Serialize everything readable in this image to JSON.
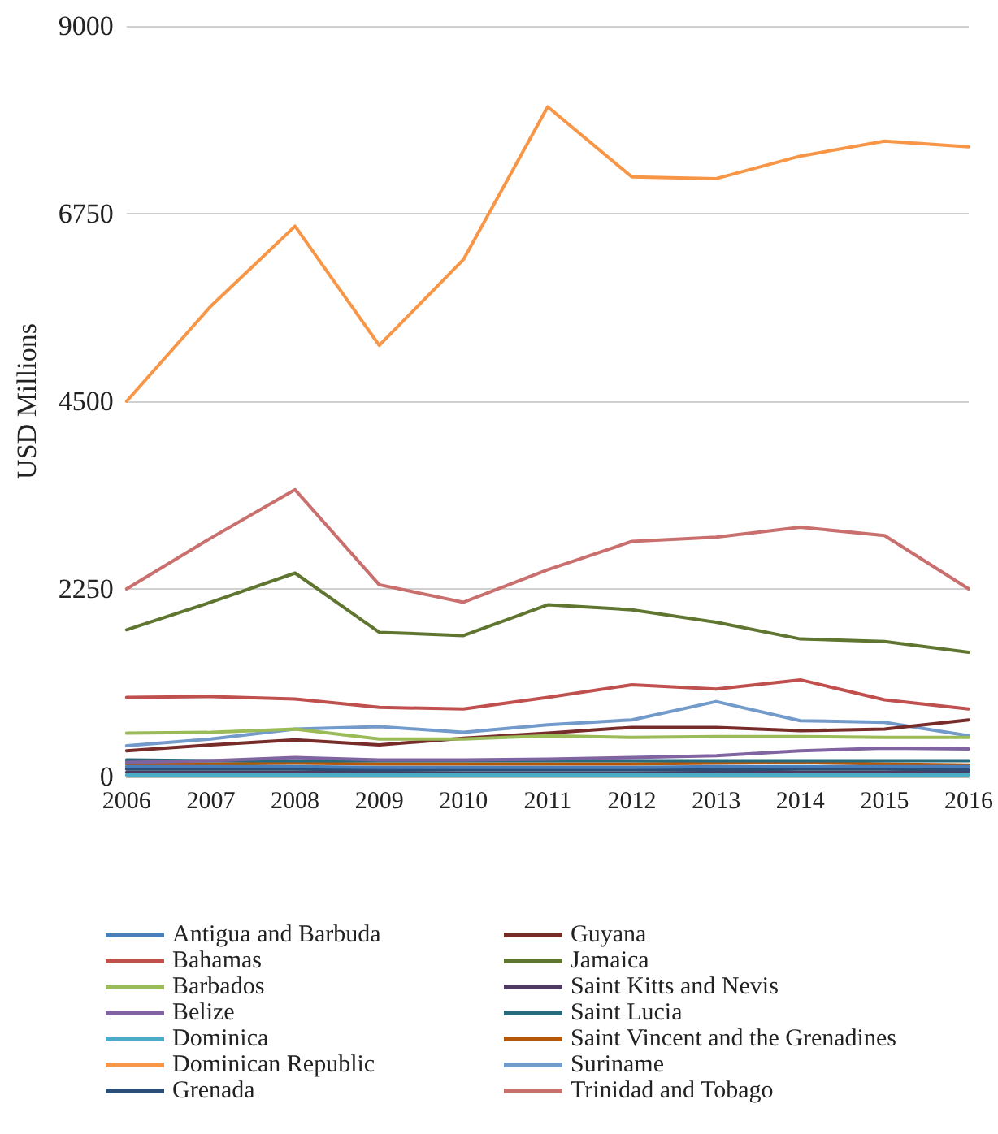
{
  "chart_data": {
    "type": "line",
    "ylabel": "USD Millions",
    "categories": [
      "2006",
      "2007",
      "2008",
      "2009",
      "2010",
      "2011",
      "2012",
      "2013",
      "2014",
      "2015",
      "2016"
    ],
    "ylim": [
      0,
      9000
    ],
    "yticks": [
      0,
      2250,
      4500,
      6750,
      9000
    ],
    "grid": "y",
    "legend": "bottom",
    "marker": "none",
    "series": [
      {
        "name": "Antigua and Barbuda",
        "color": "#4a7ebb",
        "values": [
          120,
          120,
          120,
          110,
          110,
          110,
          110,
          120,
          120,
          120,
          120
        ]
      },
      {
        "name": "Bahamas",
        "color": "#c0504d",
        "values": [
          950,
          960,
          930,
          830,
          810,
          950,
          1100,
          1050,
          1160,
          920,
          810
        ]
      },
      {
        "name": "Barbados",
        "color": "#9bbb59",
        "values": [
          520,
          530,
          570,
          450,
          450,
          490,
          470,
          480,
          480,
          470,
          470
        ]
      },
      {
        "name": "Belize",
        "color": "#8064a2",
        "values": [
          170,
          190,
          230,
          200,
          200,
          210,
          230,
          250,
          310,
          340,
          330
        ]
      },
      {
        "name": "Dominica",
        "color": "#4bacc6",
        "values": [
          20,
          20,
          20,
          20,
          20,
          20,
          20,
          20,
          20,
          20,
          20
        ]
      },
      {
        "name": "Dominican Republic",
        "color": "#f79646",
        "values": [
          4500,
          5640,
          6600,
          5170,
          6200,
          8030,
          7190,
          7170,
          7440,
          7620,
          7550
        ]
      },
      {
        "name": "Grenada",
        "color": "#2c4d75",
        "values": [
          90,
          90,
          90,
          80,
          80,
          80,
          80,
          80,
          90,
          90,
          80
        ]
      },
      {
        "name": "Guyana",
        "color": "#772c2a",
        "values": [
          310,
          380,
          440,
          380,
          460,
          520,
          590,
          590,
          550,
          570,
          680
        ]
      },
      {
        "name": "Jamaica",
        "color": "#5f7530",
        "values": [
          1760,
          2090,
          2440,
          1730,
          1690,
          2060,
          2000,
          1850,
          1650,
          1620,
          1490
        ]
      },
      {
        "name": "Saint Kitts and Nevis",
        "color": "#4d3b62",
        "values": [
          50,
          50,
          50,
          50,
          40,
          40,
          40,
          50,
          50,
          50,
          50
        ]
      },
      {
        "name": "Saint Lucia",
        "color": "#276a7c",
        "values": [
          200,
          190,
          190,
          190,
          190,
          190,
          190,
          190,
          190,
          190,
          190
        ]
      },
      {
        "name": "Saint Vincent and the Grenadines",
        "color": "#b65708",
        "values": [
          150,
          150,
          160,
          150,
          150,
          150,
          150,
          160,
          170,
          150,
          140
        ]
      },
      {
        "name": "Suriname",
        "color": "#729aca",
        "values": [
          370,
          450,
          570,
          600,
          530,
          620,
          680,
          900,
          670,
          650,
          490
        ]
      },
      {
        "name": "Trinidad and Tobago",
        "color": "#c96f6e",
        "values": [
          2250,
          2860,
          3440,
          2300,
          2090,
          2480,
          2820,
          2870,
          2990,
          2890,
          2250
        ]
      }
    ]
  }
}
